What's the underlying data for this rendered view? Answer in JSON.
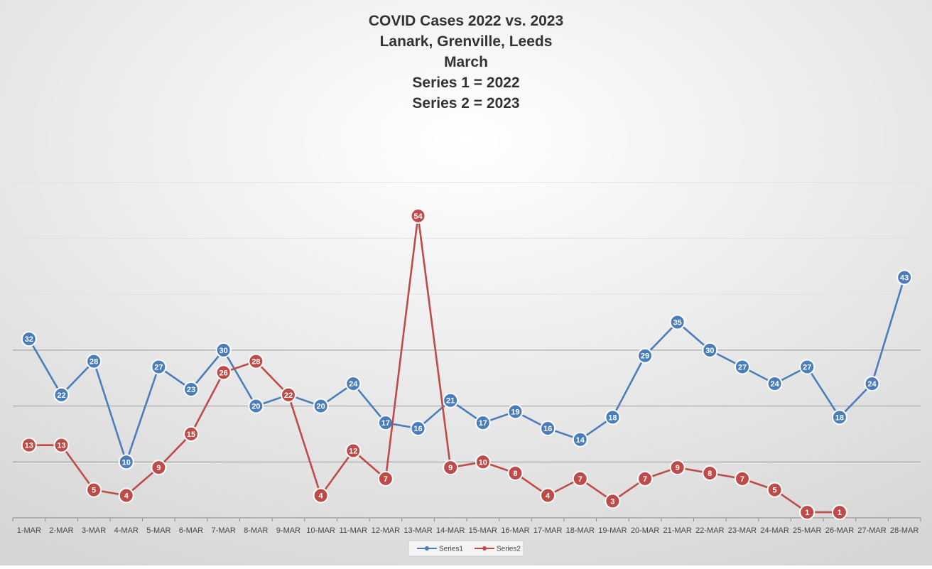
{
  "chart_data": {
    "type": "line",
    "title_lines": [
      "COVID Cases 2022 vs. 2023",
      "Lanark, Grenville, Leeds",
      "March",
      "Series 1 = 2022",
      "Series 2 = 2023"
    ],
    "categories": [
      "1-MAR",
      "2-MAR",
      "3-MAR",
      "4-MAR",
      "5-MAR",
      "6-MAR",
      "7-MAR",
      "8-MAR",
      "9-MAR",
      "10-MAR",
      "11-MAR",
      "12-MAR",
      "13-MAR",
      "14-MAR",
      "15-MAR",
      "16-MAR",
      "17-MAR",
      "18-MAR",
      "19-MAR",
      "20-MAR",
      "21-MAR",
      "22-MAR",
      "23-MAR",
      "24-MAR",
      "25-MAR",
      "26-MAR",
      "27-MAR",
      "28-MAR"
    ],
    "series": [
      {
        "name": "Series1",
        "color": "#4a7ebb",
        "values": [
          32,
          22,
          28,
          10,
          27,
          23,
          30,
          20,
          22,
          20,
          24,
          17,
          16,
          21,
          17,
          19,
          16,
          14,
          18,
          29,
          35,
          30,
          27,
          24,
          27,
          18,
          24,
          43
        ]
      },
      {
        "name": "Series2",
        "color": "#be4b48",
        "values": [
          13,
          13,
          5,
          4,
          9,
          15,
          26,
          28,
          22,
          4,
          12,
          7,
          54,
          9,
          10,
          8,
          4,
          7,
          3,
          7,
          9,
          8,
          7,
          5,
          1,
          1,
          null,
          null
        ]
      }
    ],
    "ylim": [
      0,
      70
    ],
    "y_gridlines": [
      10,
      20,
      30,
      40,
      50,
      60
    ],
    "show_y_tick_labels": false,
    "legend_position": "bottom",
    "show_data_labels": true
  }
}
